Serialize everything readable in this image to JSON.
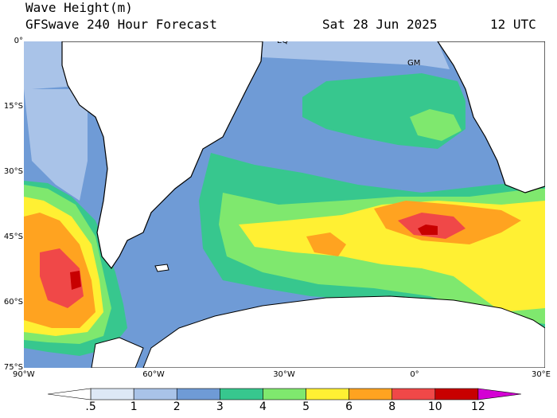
{
  "title": {
    "line1": "Wave Height(m)",
    "line2": "GFSwave 240 Hour Forecast",
    "date": "Sat 28 Jun 2025",
    "time": "12 UTC"
  },
  "map": {
    "lat_labels": [
      "0°",
      "15°S",
      "30°S",
      "45°S",
      "60°S",
      "75°S"
    ],
    "lon_labels": [
      "90°W",
      "60°W",
      "30°W",
      "0°",
      "30°E"
    ],
    "annotations": {
      "equator": "EQ",
      "greenwich": "GM"
    },
    "ocean_color": "#6f9bd6",
    "land_color": "#ffffff"
  },
  "legend": {
    "levels": [
      ".5",
      "1",
      "2",
      "3",
      "4",
      "5",
      "6",
      "8",
      "10",
      "12"
    ],
    "colors": [
      "#ffffff",
      "#dde8f6",
      "#a9c3e8",
      "#6f9bd6",
      "#37c78e",
      "#7fe86e",
      "#fff033",
      "#ffa320",
      "#f04848",
      "#c80000",
      "#d400d4"
    ]
  }
}
